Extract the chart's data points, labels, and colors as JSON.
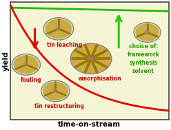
{
  "xlabel": "time-on-stream",
  "ylabel": "yield",
  "bg_color": "#f0f0c0",
  "plot_bg": "#f5f5d5",
  "red_curve_color": "#dd0000",
  "green_line_color": "#22bb00",
  "red_arrow_color": "#dd0000",
  "green_arrow_color": "#22cc00",
  "label_color_red": "#cc0000",
  "label_color_green": "#229900",
  "zeolite_fill": "#ccaa44",
  "zeolite_border": "#888888",
  "zeolite_inner": "#d0ddb0",
  "zeolite_dark": "#997700",
  "sn_color": "#9980bb",
  "labels": {
    "tin_leaching": "tin leaching",
    "fouling": "fouling",
    "amorphisation": "amorphisation",
    "tin_restructuring": "tin restructuring",
    "choice": "choice of:\nframework\nsynthesis\nsolvent"
  }
}
